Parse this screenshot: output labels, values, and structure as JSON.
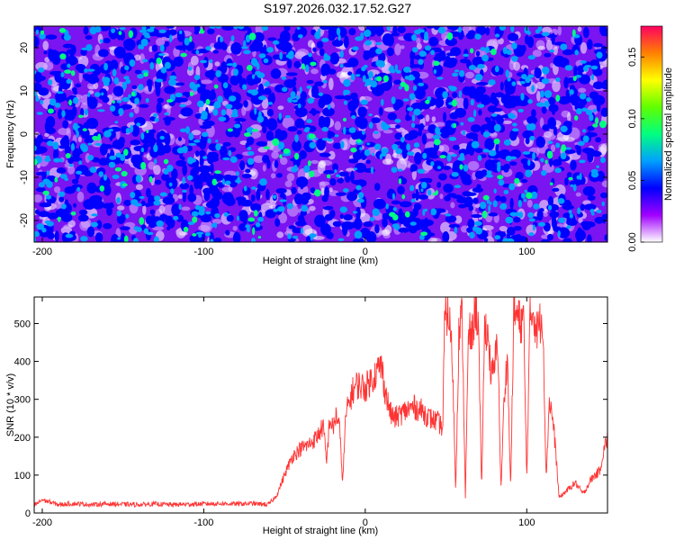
{
  "title": "S197.2026.032.17.52.G27",
  "chart_data": [
    {
      "type": "heatmap",
      "xlabel": "Height of straight line (km)",
      "ylabel": "Frequency (Hz)",
      "xlim": [
        -205,
        150
      ],
      "ylim": [
        -25,
        25
      ],
      "xticks": [
        -200,
        -100,
        0,
        100
      ],
      "xtick_labels": [
        "-200",
        "-100",
        "0",
        "100"
      ],
      "yticks": [
        -20,
        -10,
        0,
        10,
        20
      ],
      "ytick_labels": [
        "-20",
        "-10",
        "0",
        "10",
        "20"
      ],
      "colorbar": {
        "label": "Normalized spectral amplitude",
        "range": [
          0,
          0.175
        ],
        "ticks": [
          0,
          0.05,
          0.1,
          0.15
        ],
        "tick_labels": [
          "0.00",
          "0.05",
          "0.10",
          "0.15"
        ],
        "colors": [
          "#ffffff",
          "#a000ff",
          "#0000ff",
          "#00a0ff",
          "#00ff80",
          "#60ff00",
          "#ffff00",
          "#ff8000",
          "#ff0060"
        ]
      }
    },
    {
      "type": "line",
      "xlabel": "Height of straight line (km)",
      "ylabel": "SNR (10 * v/v)",
      "xlim": [
        -205,
        150
      ],
      "ylim": [
        0,
        570
      ],
      "xticks": [
        -200,
        -100,
        0,
        100
      ],
      "xtick_labels": [
        "-200",
        "-100",
        "0",
        "100"
      ],
      "yticks": [
        0,
        100,
        200,
        300,
        400,
        500
      ],
      "ytick_labels": [
        "0",
        "100",
        "200",
        "300",
        "400",
        "500"
      ],
      "line_color": "#ff3333",
      "series": [
        {
          "name": "SNR",
          "x": [
            -205,
            -200,
            -190,
            -180,
            -170,
            -160,
            -150,
            -140,
            -130,
            -120,
            -110,
            -100,
            -90,
            -80,
            -70,
            -60,
            -55,
            -50,
            -45,
            -40,
            -35,
            -30,
            -26,
            -24,
            -22,
            -20,
            -18,
            -16,
            -14,
            -12,
            -10,
            -8,
            -5,
            0,
            5,
            10,
            12,
            14,
            16,
            18,
            20,
            25,
            30,
            35,
            40,
            45,
            47,
            48,
            49,
            50,
            52,
            54,
            56,
            58,
            60,
            62,
            64,
            66,
            68,
            70,
            72,
            74,
            76,
            78,
            80,
            82,
            84,
            86,
            88,
            90,
            92,
            94,
            96,
            98,
            100,
            102,
            104,
            106,
            108,
            110,
            112,
            114,
            116,
            118,
            120,
            125,
            130,
            135,
            140,
            145,
            148,
            150
          ],
          "y": [
            20,
            35,
            22,
            25,
            22,
            24,
            23,
            22,
            24,
            22,
            23,
            24,
            25,
            24,
            25,
            22,
            45,
            100,
            150,
            170,
            180,
            200,
            230,
            130,
            250,
            220,
            260,
            230,
            80,
            260,
            290,
            320,
            340,
            330,
            360,
            390,
            330,
            290,
            260,
            250,
            255,
            270,
            280,
            270,
            250,
            240,
            230,
            220,
            480,
            530,
            520,
            400,
            60,
            480,
            520,
            40,
            480,
            460,
            540,
            510,
            60,
            500,
            470,
            360,
            380,
            470,
            60,
            300,
            420,
            60,
            530,
            520,
            500,
            520,
            90,
            510,
            540,
            480,
            500,
            520,
            90,
            300,
            250,
            160,
            40,
            60,
            80,
            50,
            90,
            110,
            170,
            200
          ]
        }
      ]
    }
  ]
}
